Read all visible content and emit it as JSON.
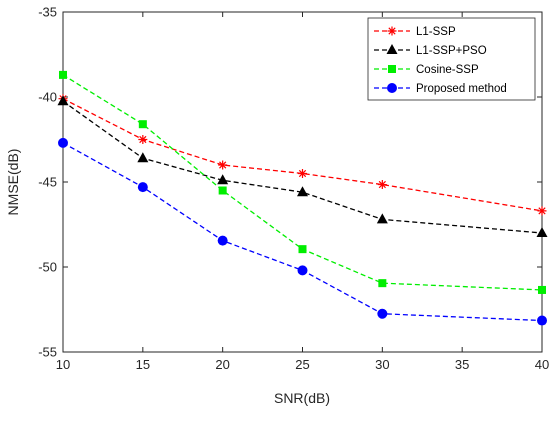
{
  "chart_data": {
    "type": "line",
    "title": "",
    "xlabel": "SNR(dB)",
    "ylabel": "NMSE(dB)",
    "xlim": [
      10,
      40
    ],
    "ylim": [
      -55,
      -35
    ],
    "xticks": [
      10,
      15,
      20,
      25,
      30,
      35,
      40
    ],
    "yticks": [
      -35,
      -40,
      -45,
      -50,
      -55
    ],
    "xtick_labels": [
      "10",
      "15",
      "20",
      "25",
      "30",
      "35",
      "40"
    ],
    "ytick_labels": [
      "-35",
      "-40",
      "-45",
      "-50",
      "-55"
    ],
    "grid": false,
    "legend_position": "top-right",
    "x": [
      10,
      15,
      20,
      25,
      30,
      40
    ],
    "series": [
      {
        "name": "L1-SSP",
        "values": [
          -40.1,
          -42.5,
          -44.0,
          -44.5,
          -45.15,
          -46.7
        ],
        "color": "#ff0000",
        "marker": "asterisk"
      },
      {
        "name": "L1-SSP+PSO",
        "values": [
          -40.25,
          -43.6,
          -44.9,
          -45.6,
          -47.2,
          -48.0
        ],
        "color": "#000000",
        "marker": "triangle"
      },
      {
        "name": "Cosine-SSP",
        "values": [
          -38.7,
          -41.6,
          -45.5,
          -48.95,
          -50.95,
          -51.35
        ],
        "color": "#00ee00",
        "marker": "square"
      },
      {
        "name": "Proposed method",
        "values": [
          -42.7,
          -45.3,
          -48.45,
          -50.2,
          -52.75,
          -53.15
        ],
        "color": "#0000ff",
        "marker": "circle"
      }
    ]
  }
}
